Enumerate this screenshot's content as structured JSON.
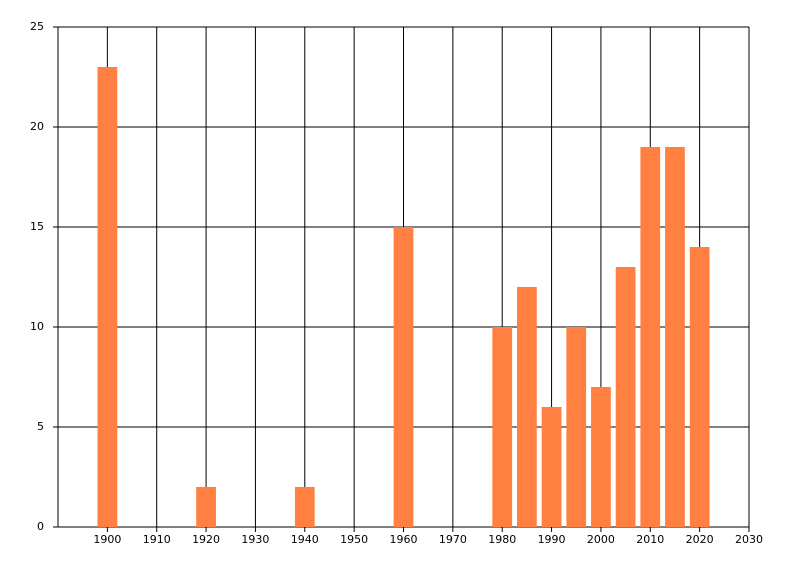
{
  "chart_data": {
    "type": "bar",
    "x": [
      1900,
      1920,
      1940,
      1960,
      1980,
      1985,
      1990,
      1995,
      2000,
      2005,
      2010,
      2015,
      2020
    ],
    "values": [
      23,
      2,
      2,
      15,
      10,
      12,
      6,
      10,
      7,
      13,
      19,
      19,
      14
    ],
    "color": "#ff8040",
    "xlim": [
      1890,
      2030
    ],
    "xticks": [
      1900,
      1910,
      1920,
      1930,
      1940,
      1950,
      1960,
      1970,
      1980,
      1990,
      2000,
      2010,
      2020,
      2030
    ],
    "ylim": [
      0,
      25
    ],
    "yticks": [
      0,
      5,
      10,
      15,
      20,
      25
    ],
    "grid": true
  }
}
